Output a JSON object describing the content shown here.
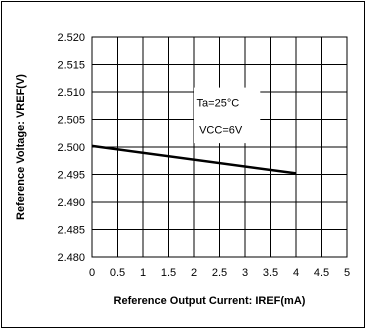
{
  "chart_data": {
    "type": "line",
    "xlabel": "Reference Output Current: IREF(mA)",
    "ylabel": "Reference Voltage: VREF(V)",
    "xlim": [
      0,
      5
    ],
    "ylim": [
      2.48,
      2.52
    ],
    "x_ticks": [
      "0",
      "0.5",
      "1",
      "1.5",
      "2",
      "2.5",
      "3",
      "3.5",
      "4",
      "4.5",
      "5"
    ],
    "y_ticks": [
      "2.480",
      "2.485",
      "2.490",
      "2.495",
      "2.500",
      "2.505",
      "2.510",
      "2.515",
      "2.520"
    ],
    "grid": true,
    "annotations": [
      "Ta=25°C",
      "VCC=6V"
    ],
    "series": [
      {
        "x": [
          0,
          4
        ],
        "y": [
          2.5002,
          2.4952
        ],
        "color": "#000000"
      }
    ]
  }
}
